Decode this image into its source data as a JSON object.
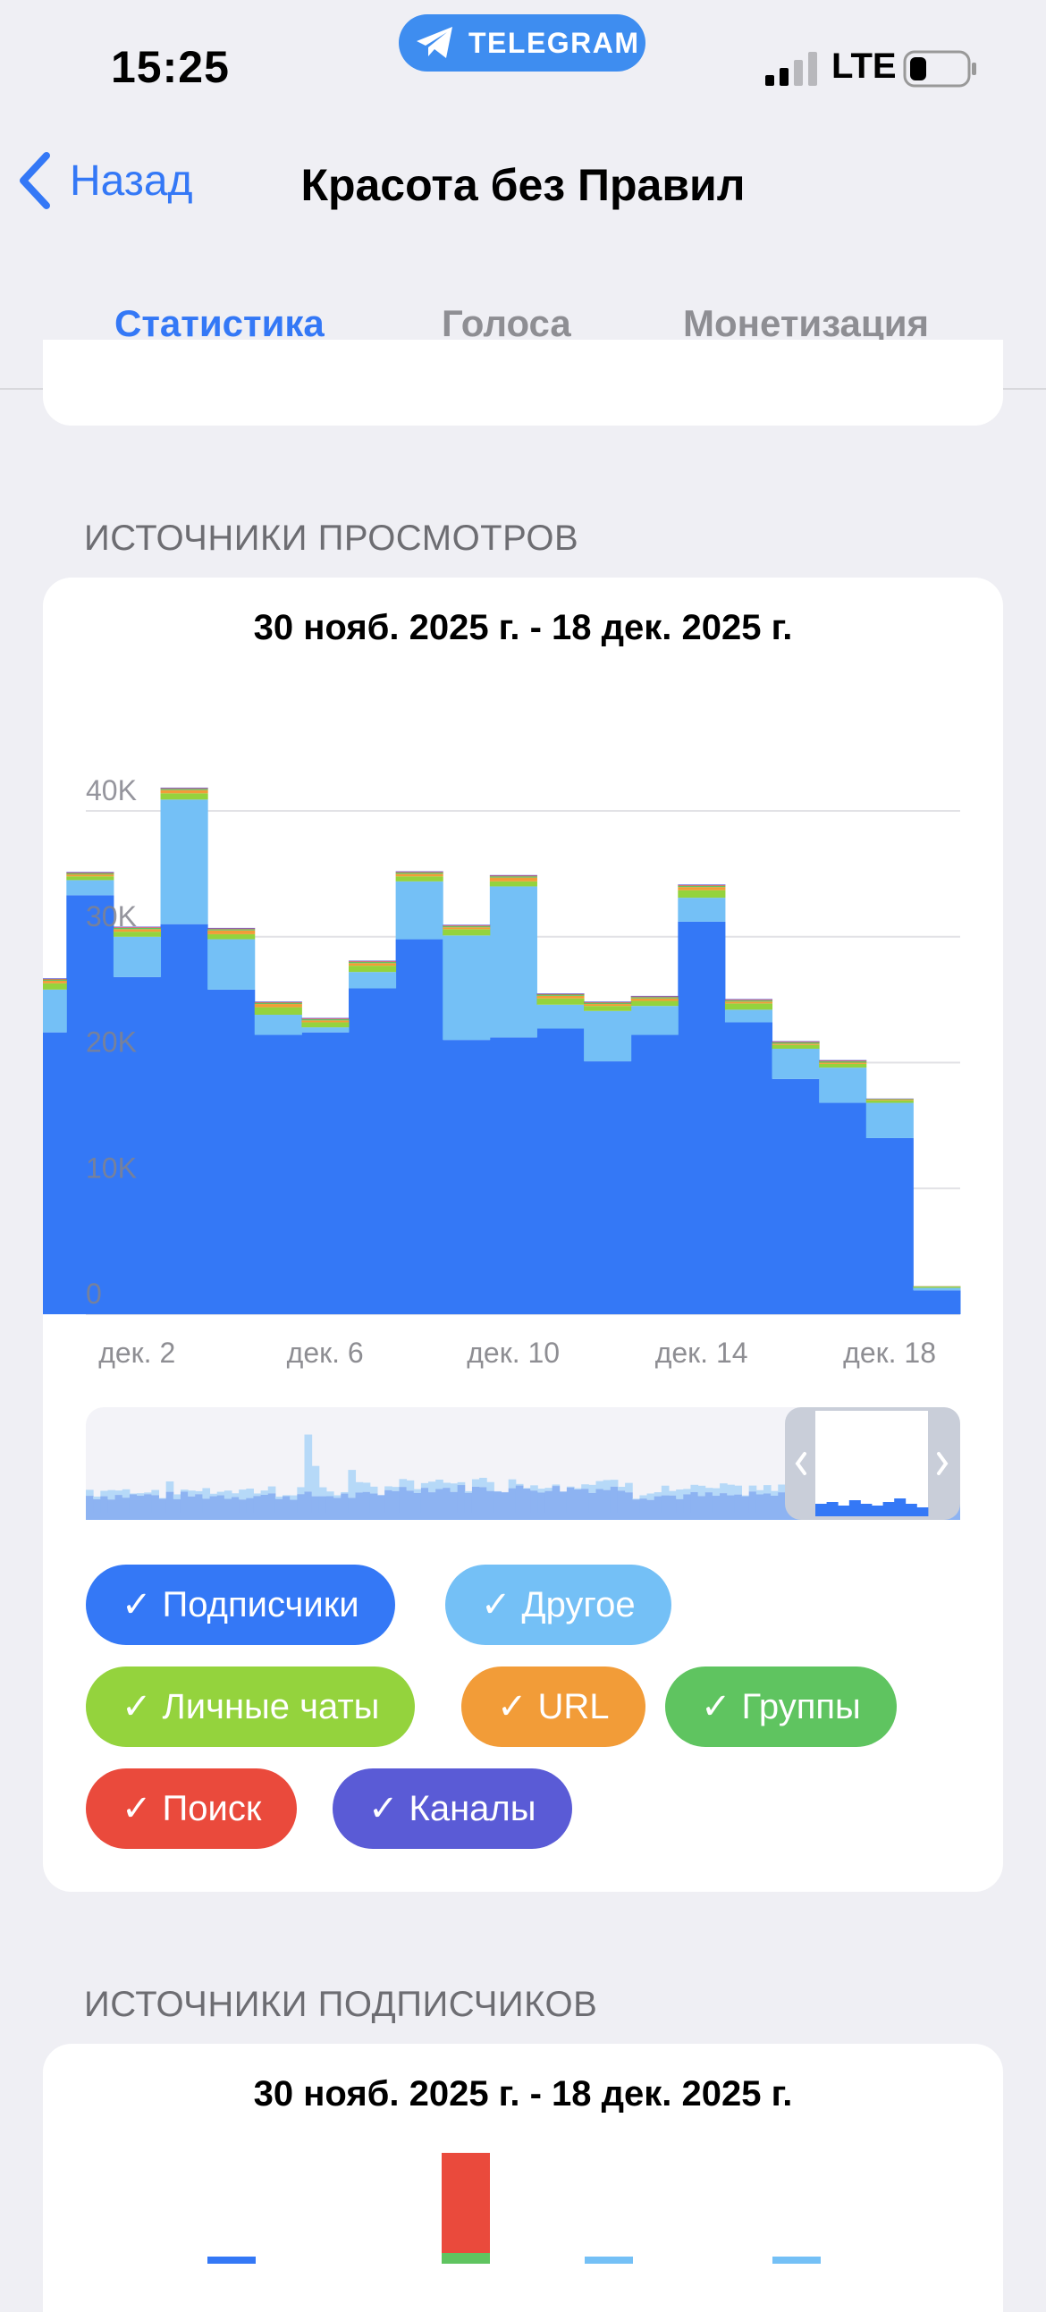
{
  "status_bar": {
    "time": "15:25",
    "telegram_label": "TELEGRAM",
    "network": "LTE"
  },
  "nav": {
    "back_label": "Назад",
    "title": "Красота без Правил"
  },
  "tabs": [
    {
      "label": "Статистика",
      "active": true
    },
    {
      "label": "Голоса",
      "active": false
    },
    {
      "label": "Монетизация",
      "active": false
    }
  ],
  "sections": {
    "views": {
      "header": "ИСТОЧНИКИ ПРОСМОТРОВ",
      "date_range": "30 нояб. 2025 г. - 18 дек. 2025 г."
    },
    "subscribers": {
      "header": "ИСТОЧНИКИ ПОДПИСЧИКОВ",
      "date_range": "30 нояб. 2025 г. - 18 дек. 2025 г."
    }
  },
  "colors": {
    "subscribers": "#3478f6",
    "other": "#74c0f6",
    "private_chats": "#94d33d",
    "url": "#f29c38",
    "groups": "#5fc460",
    "search": "#ea4a3c",
    "channels": "#5a5bd6"
  },
  "chart_data": {
    "type": "area",
    "stacked": true,
    "step": true,
    "x": [
      "нояб. 30",
      "дек. 1",
      "дек. 2",
      "дек. 3",
      "дек. 4",
      "дек. 5",
      "дек. 6",
      "дек. 7",
      "дек. 8",
      "дек. 9",
      "дек. 10",
      "дек. 11",
      "дек. 12",
      "дек. 13",
      "дек. 14",
      "дек. 15",
      "дек. 16",
      "дек. 17",
      "дек. 18",
      "дек. 19"
    ],
    "x_tick_labels": [
      "дек. 2",
      "дек. 6",
      "дек. 10",
      "дек. 14",
      "дек. 18"
    ],
    "y_tick_labels": [
      "0",
      "10K",
      "20K",
      "30K",
      "40K"
    ],
    "ylim": [
      0,
      40000
    ],
    "grid": true,
    "series": [
      {
        "name": "Подписчики",
        "values": [
          22400,
          33300,
          26800,
          31000,
          25800,
          22200,
          22400,
          25900,
          29800,
          21800,
          22000,
          22700,
          20100,
          22200,
          31200,
          23200,
          18700,
          16800,
          14000,
          1900
        ]
      },
      {
        "name": "Другое",
        "values": [
          3400,
          1200,
          3200,
          9900,
          4000,
          1600,
          400,
          1300,
          4600,
          8300,
          12000,
          1900,
          4000,
          2300,
          1900,
          1000,
          2400,
          2800,
          2800,
          200
        ]
      },
      {
        "name": "Личные чаты",
        "values": [
          500,
          300,
          400,
          500,
          400,
          600,
          400,
          500,
          400,
          500,
          400,
          500,
          400,
          400,
          600,
          500,
          300,
          300,
          200,
          100
        ]
      },
      {
        "name": "URL",
        "values": [
          200,
          150,
          200,
          250,
          300,
          250,
          150,
          200,
          200,
          150,
          300,
          200,
          150,
          200,
          250,
          150,
          100,
          100,
          50,
          20
        ]
      },
      {
        "name": "Группы",
        "values": [
          100,
          100,
          100,
          100,
          100,
          100,
          100,
          100,
          100,
          100,
          100,
          100,
          100,
          100,
          100,
          100,
          100,
          100,
          50,
          10
        ]
      },
      {
        "name": "Поиск",
        "values": [
          50,
          50,
          50,
          50,
          50,
          50,
          50,
          50,
          50,
          50,
          50,
          50,
          50,
          50,
          50,
          50,
          50,
          50,
          20,
          5
        ]
      },
      {
        "name": "Каналы",
        "values": [
          50,
          50,
          50,
          50,
          50,
          50,
          50,
          50,
          50,
          50,
          50,
          50,
          50,
          50,
          50,
          50,
          50,
          50,
          20,
          5
        ]
      }
    ]
  },
  "filters": [
    {
      "label": "Подписчики",
      "color_key": "subscribers",
      "checked": true
    },
    {
      "label": "Другое",
      "color_key": "other",
      "checked": true
    },
    {
      "label": "Личные чаты",
      "color_key": "private_chats",
      "checked": true
    },
    {
      "label": "URL",
      "color_key": "url",
      "checked": true
    },
    {
      "label": "Группы",
      "color_key": "groups",
      "checked": true
    },
    {
      "label": "Поиск",
      "color_key": "search",
      "checked": true
    },
    {
      "label": "Каналы",
      "color_key": "channels",
      "checked": true
    }
  ],
  "check_mark": "✓",
  "subs_chart_data": {
    "type": "bar",
    "note": "partially visible (cut off at bottom of screen)"
  }
}
